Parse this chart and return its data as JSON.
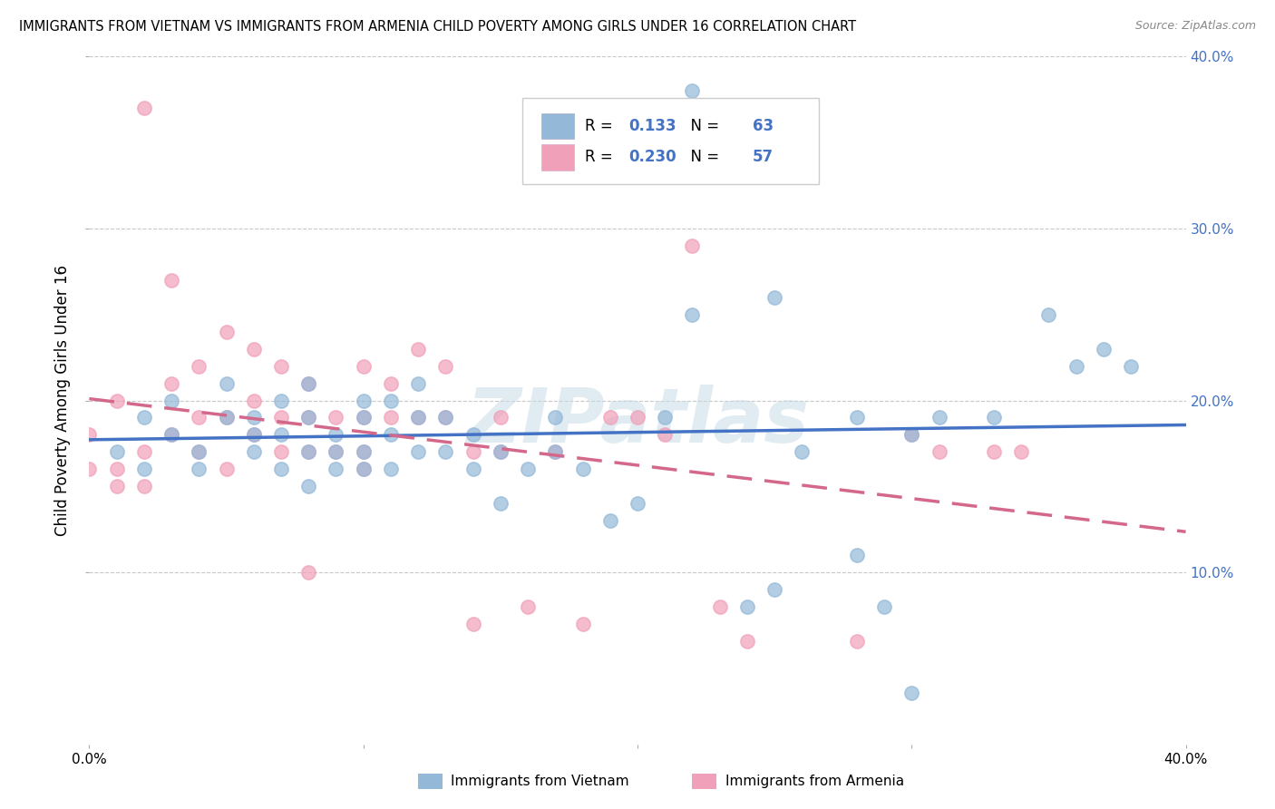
{
  "title": "IMMIGRANTS FROM VIETNAM VS IMMIGRANTS FROM ARMENIA CHILD POVERTY AMONG GIRLS UNDER 16 CORRELATION CHART",
  "source": "Source: ZipAtlas.com",
  "ylabel": "Child Poverty Among Girls Under 16",
  "xlim": [
    0.0,
    0.4
  ],
  "ylim": [
    0.0,
    0.4
  ],
  "watermark": "ZIPatlas",
  "vietnam_color": "#93b8d8",
  "armenia_color": "#f0a0b8",
  "vietnam_R": 0.133,
  "vietnam_N": 63,
  "armenia_R": 0.23,
  "armenia_N": 57,
  "vietnam_line_color": "#4472c4",
  "armenia_line_color": "#d4688a",
  "grid_color": "#c8c8c8",
  "background_color": "#ffffff",
  "legend_R_N_color": "#4472c4",
  "vietnam_scatter_x": [
    0.01,
    0.02,
    0.02,
    0.03,
    0.03,
    0.04,
    0.04,
    0.05,
    0.05,
    0.06,
    0.06,
    0.06,
    0.07,
    0.07,
    0.07,
    0.08,
    0.08,
    0.08,
    0.08,
    0.09,
    0.09,
    0.09,
    0.1,
    0.1,
    0.1,
    0.1,
    0.11,
    0.11,
    0.11,
    0.12,
    0.12,
    0.12,
    0.13,
    0.13,
    0.14,
    0.14,
    0.15,
    0.15,
    0.16,
    0.17,
    0.17,
    0.18,
    0.19,
    0.2,
    0.21,
    0.22,
    0.24,
    0.25,
    0.26,
    0.28,
    0.29,
    0.3,
    0.31,
    0.33,
    0.35,
    0.36,
    0.37,
    0.38,
    0.3,
    0.2,
    0.22,
    0.25,
    0.28
  ],
  "vietnam_scatter_y": [
    0.17,
    0.16,
    0.19,
    0.18,
    0.2,
    0.16,
    0.17,
    0.19,
    0.21,
    0.18,
    0.19,
    0.17,
    0.16,
    0.18,
    0.2,
    0.15,
    0.17,
    0.19,
    0.21,
    0.17,
    0.16,
    0.18,
    0.16,
    0.17,
    0.19,
    0.2,
    0.16,
    0.18,
    0.2,
    0.17,
    0.19,
    0.21,
    0.17,
    0.19,
    0.16,
    0.18,
    0.14,
    0.17,
    0.16,
    0.17,
    0.19,
    0.16,
    0.13,
    0.14,
    0.19,
    0.25,
    0.08,
    0.09,
    0.17,
    0.19,
    0.08,
    0.18,
    0.19,
    0.19,
    0.25,
    0.22,
    0.23,
    0.22,
    0.03,
    0.33,
    0.38,
    0.26,
    0.11
  ],
  "armenia_scatter_x": [
    0.0,
    0.0,
    0.01,
    0.01,
    0.01,
    0.02,
    0.02,
    0.02,
    0.03,
    0.03,
    0.03,
    0.04,
    0.04,
    0.04,
    0.05,
    0.05,
    0.05,
    0.06,
    0.06,
    0.06,
    0.07,
    0.07,
    0.07,
    0.08,
    0.08,
    0.08,
    0.09,
    0.09,
    0.1,
    0.1,
    0.1,
    0.11,
    0.11,
    0.12,
    0.12,
    0.13,
    0.13,
    0.14,
    0.14,
    0.15,
    0.15,
    0.16,
    0.17,
    0.18,
    0.19,
    0.2,
    0.21,
    0.23,
    0.24,
    0.28,
    0.3,
    0.31,
    0.33,
    0.34,
    0.22,
    0.1,
    0.08
  ],
  "armenia_scatter_y": [
    0.16,
    0.18,
    0.16,
    0.2,
    0.15,
    0.37,
    0.15,
    0.17,
    0.27,
    0.18,
    0.21,
    0.22,
    0.19,
    0.17,
    0.24,
    0.19,
    0.16,
    0.23,
    0.2,
    0.18,
    0.22,
    0.19,
    0.17,
    0.21,
    0.19,
    0.17,
    0.19,
    0.17,
    0.22,
    0.19,
    0.17,
    0.21,
    0.19,
    0.23,
    0.19,
    0.22,
    0.19,
    0.17,
    0.07,
    0.19,
    0.17,
    0.08,
    0.17,
    0.07,
    0.19,
    0.19,
    0.18,
    0.08,
    0.06,
    0.06,
    0.18,
    0.17,
    0.17,
    0.17,
    0.29,
    0.16,
    0.1
  ]
}
